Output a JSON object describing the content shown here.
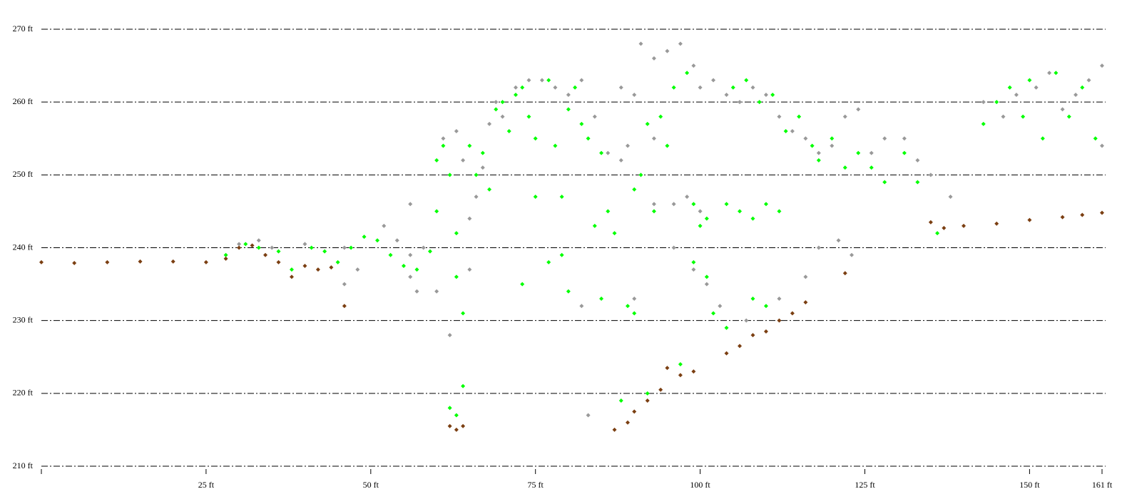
{
  "chart_data": {
    "type": "scatter",
    "xlim": [
      0,
      161
    ],
    "ylim": [
      210,
      270
    ],
    "xticks": [
      {
        "value": 25,
        "label": "25 ft"
      },
      {
        "value": 50,
        "label": "50 ft"
      },
      {
        "value": 75,
        "label": "75 ft"
      },
      {
        "value": 100,
        "label": "100 ft"
      },
      {
        "value": 125,
        "label": "125 ft"
      },
      {
        "value": 150,
        "label": "150 ft"
      },
      {
        "value": 161,
        "label": "161 ft"
      }
    ],
    "yticks": [
      {
        "value": 210,
        "label": "210 ft"
      },
      {
        "value": 220,
        "label": "220 ft"
      },
      {
        "value": 230,
        "label": "230 ft"
      },
      {
        "value": 240,
        "label": "240 ft"
      },
      {
        "value": 250,
        "label": "250 ft"
      },
      {
        "value": 260,
        "label": "260 ft"
      },
      {
        "value": 270,
        "label": "270 ft"
      }
    ],
    "grid": true,
    "series": [
      {
        "color": "#999999",
        "x": [
          30,
          33,
          35,
          40,
          46,
          48,
          46,
          52,
          54,
          56,
          58,
          56,
          57,
          56,
          61,
          63,
          64,
          65,
          66,
          67,
          68,
          69,
          70,
          72,
          74,
          76,
          78,
          80,
          82,
          84,
          86,
          88,
          90,
          88,
          89,
          91,
          93,
          93,
          95,
          97,
          99,
          100,
          102,
          104,
          106,
          108,
          110,
          112,
          114,
          116,
          118,
          120,
          122,
          124,
          126,
          128,
          131,
          133,
          135,
          138,
          93,
          96,
          98,
          100,
          96,
          99,
          101,
          103,
          107,
          112,
          116,
          118,
          121,
          123,
          83,
          60,
          62,
          65,
          82,
          90,
          143,
          146,
          148,
          151,
          153,
          155,
          157,
          159,
          161,
          161
        ],
        "values": [
          240.5,
          241,
          240,
          240.5,
          240,
          237,
          235,
          243,
          241,
          239,
          240,
          236,
          234,
          246,
          255,
          256,
          252,
          244,
          247,
          251,
          257,
          260,
          258,
          262,
          263,
          263,
          262,
          261,
          263,
          258,
          253,
          262,
          261,
          252,
          254,
          268,
          255,
          266,
          267,
          268,
          265,
          262,
          263,
          261,
          260,
          262,
          261,
          258,
          256,
          255,
          253,
          254,
          258,
          259,
          253,
          255,
          255,
          252,
          250,
          247,
          246,
          246,
          247,
          245,
          240,
          237,
          235,
          232,
          230,
          233,
          236,
          240,
          241,
          239,
          217,
          234,
          228,
          237,
          232,
          233,
          260,
          258,
          261,
          262,
          264,
          259,
          261,
          263,
          254,
          265
        ]
      },
      {
        "color": "#00ff00",
        "x": [
          28,
          31,
          33,
          36,
          38,
          41,
          43,
          45,
          47,
          49,
          51,
          53,
          55,
          57,
          59,
          60,
          60,
          61,
          62,
          63,
          63,
          64,
          62,
          63,
          64,
          65,
          66,
          67,
          68,
          69,
          70,
          71,
          72,
          73,
          74,
          75,
          75,
          77,
          78,
          79,
          80,
          81,
          82,
          83,
          84,
          86,
          87,
          85,
          77,
          79,
          80,
          85,
          88,
          89,
          90,
          90,
          91,
          93,
          92,
          94,
          95,
          96,
          98,
          99,
          100,
          101,
          99,
          101,
          102,
          104,
          104,
          106,
          108,
          110,
          112,
          105,
          107,
          109,
          111,
          113,
          115,
          117,
          118,
          120,
          122,
          124,
          126,
          128,
          131,
          133,
          136,
          108,
          110,
          143,
          145,
          147,
          149,
          150,
          152,
          154,
          156,
          158,
          160,
          97,
          92,
          73
        ],
        "values": [
          239,
          240.5,
          240,
          239.5,
          237,
          240,
          239.5,
          238,
          240,
          241.5,
          241,
          239,
          237.5,
          237,
          239.5,
          245,
          252,
          254,
          250,
          242,
          236,
          231,
          218,
          217,
          221,
          254,
          250,
          253,
          248,
          259,
          260,
          256,
          261,
          262,
          258,
          255,
          247,
          263,
          254,
          247,
          259,
          262,
          257,
          255,
          243,
          245,
          242,
          253,
          238,
          239,
          234,
          233,
          219,
          232,
          231,
          248,
          250,
          245,
          257,
          258,
          254,
          262,
          264,
          246,
          243,
          244,
          238,
          236,
          231,
          229,
          246,
          245,
          244,
          246,
          245,
          262,
          263,
          260,
          261,
          256,
          258,
          254,
          252,
          255,
          251,
          253,
          251,
          249,
          253,
          249,
          242,
          233,
          232,
          257,
          260,
          262,
          258,
          263,
          255,
          264,
          258,
          262,
          255,
          224,
          220,
          235
        ]
      },
      {
        "color": "#7b3f12",
        "x": [
          0,
          5,
          10,
          15,
          20,
          25,
          28,
          30,
          32,
          34,
          36,
          38,
          40,
          42,
          44,
          46,
          62,
          63,
          64,
          87,
          89,
          90,
          92,
          94,
          95,
          97,
          99,
          104,
          106,
          108,
          110,
          112,
          114,
          116,
          122,
          135,
          137,
          140,
          145,
          150,
          155,
          158,
          161
        ],
        "values": [
          238,
          237.9,
          238,
          238.1,
          238.1,
          238,
          238.5,
          240,
          240.3,
          239,
          238,
          236,
          237.5,
          237,
          237.3,
          232,
          215.5,
          215,
          215.5,
          215,
          216,
          217.5,
          219,
          220.5,
          223.5,
          222.5,
          223,
          225.5,
          226.5,
          228,
          228.5,
          230,
          231,
          232.5,
          236.5,
          243.5,
          242.7,
          243,
          243.3,
          243.8,
          244.2,
          244.5,
          244.8
        ]
      }
    ]
  }
}
